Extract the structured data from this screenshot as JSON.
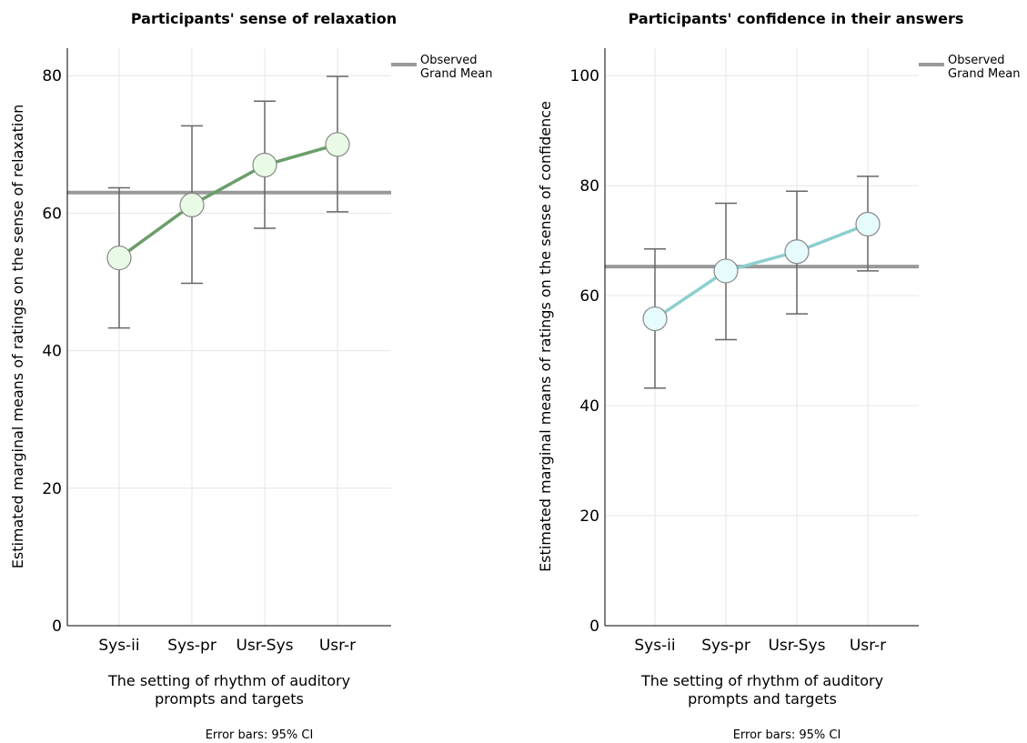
{
  "footnote": "Error bars: 95% CI",
  "legend": {
    "line1": "Observed",
    "line2": "Grand Mean"
  },
  "colors": {
    "grand_mean": "#999999",
    "error_bar": "#666666",
    "grid": "#e6e6e6",
    "axis": "#000000",
    "marker_edge": "#888888"
  },
  "chart_data": [
    {
      "type": "line",
      "title": "Participants' sense of relaxation",
      "xlabel": [
        "The setting of rhythm of auditory",
        "prompts and targets"
      ],
      "ylabel": "Estimated marginal means of ratings on the sense of relaxation",
      "categories": [
        "Sys-ii",
        "Sys-pr",
        "Usr-Sys",
        "Usr-r"
      ],
      "ylim": [
        0,
        84
      ],
      "yticks": [
        0,
        20,
        40,
        60,
        80
      ],
      "grid": true,
      "grand_mean": 63,
      "line_color": "#6a9e6a",
      "marker_fill": "#e9fbe6",
      "series": [
        {
          "values": [
            53.5,
            61.2,
            67.0,
            70.0
          ],
          "ci_lower": [
            43.3,
            49.8,
            57.8,
            60.2
          ],
          "ci_upper": [
            63.7,
            72.7,
            76.3,
            79.9
          ]
        }
      ]
    },
    {
      "type": "line",
      "title": "Participants' confidence in their answers",
      "xlabel": [
        "The setting of rhythm of auditory",
        "prompts and targets"
      ],
      "ylabel": "Estimated marginal means of ratings on the sense of confidence",
      "categories": [
        "Sys-ii",
        "Sys-pr",
        "Usr-Sys",
        "Usr-r"
      ],
      "ylim": [
        0,
        105
      ],
      "yticks": [
        0,
        20,
        40,
        60,
        80,
        100
      ],
      "grid": true,
      "grand_mean": 65.3,
      "line_color": "#8ccfcf",
      "marker_fill": "#e6fbfb",
      "series": [
        {
          "values": [
            55.8,
            64.5,
            68.0,
            73.0
          ],
          "ci_lower": [
            43.2,
            52.0,
            56.7,
            64.5
          ],
          "ci_upper": [
            68.5,
            76.8,
            79.0,
            81.7
          ]
        }
      ]
    }
  ]
}
